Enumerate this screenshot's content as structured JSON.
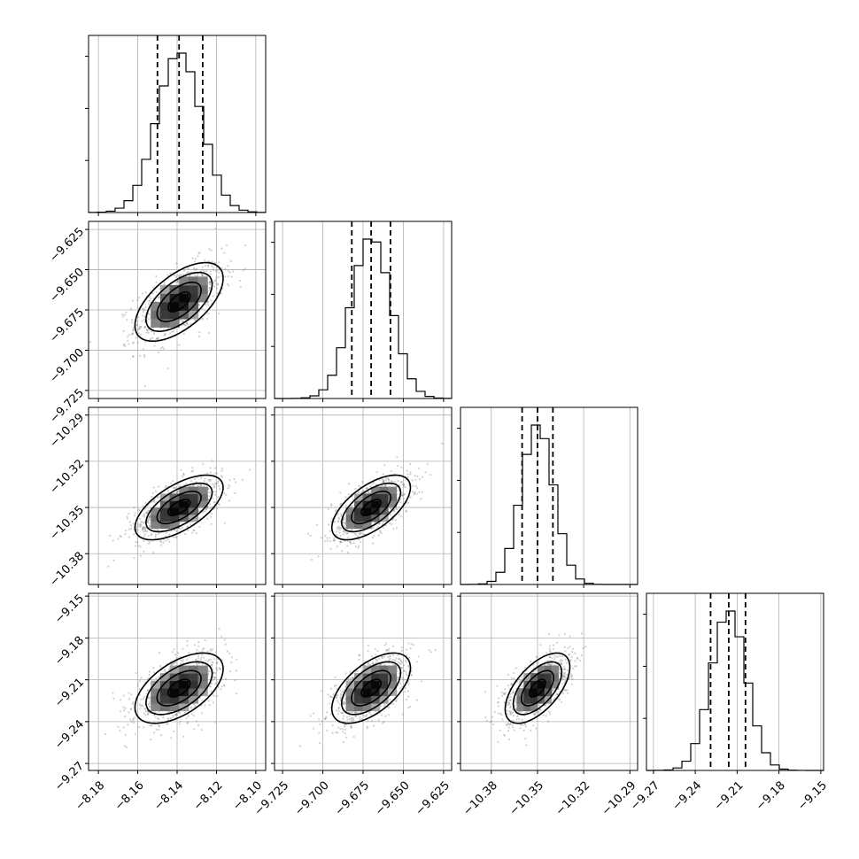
{
  "chart_data": {
    "type": "corner",
    "grid": true,
    "parameters": [
      {
        "index": 0,
        "mean": -8.139,
        "std": 0.0112,
        "range": [
          -8.185,
          -8.095
        ],
        "quantiles": [
          -8.15,
          -8.139,
          -8.127
        ],
        "ticks": [
          -8.18,
          -8.16,
          -8.14,
          -8.12,
          -8.1
        ],
        "tick_labels": [
          "−8.18",
          "−8.16",
          "−8.14",
          "−8.12",
          "−8.10"
        ]
      },
      {
        "index": 1,
        "mean": -9.67,
        "std": 0.0122,
        "range": [
          -9.73,
          -9.62
        ],
        "quantiles": [
          -9.682,
          -9.67,
          -9.658
        ],
        "ticks": [
          -9.725,
          -9.7,
          -9.675,
          -9.65,
          -9.625
        ],
        "tick_labels": [
          "−9.725",
          "−9.700",
          "−9.675",
          "−9.650",
          "−9.625"
        ]
      },
      {
        "index": 2,
        "mean": -10.35,
        "std": 0.0105,
        "range": [
          -10.4,
          -10.285
        ],
        "quantiles": [
          -10.36,
          -10.35,
          -10.34
        ],
        "ticks": [
          -10.38,
          -10.35,
          -10.32,
          -10.29
        ],
        "tick_labels": [
          "−10.38",
          "−10.35",
          "−10.32",
          "−10.29"
        ]
      },
      {
        "index": 3,
        "mean": -9.216,
        "std": 0.0126,
        "range": [
          -9.275,
          -9.148
        ],
        "quantiles": [
          -9.229,
          -9.216,
          -9.204
        ],
        "ticks": [
          -9.27,
          -9.24,
          -9.21,
          -9.18,
          -9.15
        ],
        "tick_labels": [
          "−9.27",
          "−9.24",
          "−9.21",
          "−9.18",
          "−9.15"
        ]
      }
    ],
    "correlations": [
      {
        "x": 0,
        "y": 1,
        "rho": 0.6
      },
      {
        "x": 0,
        "y": 2,
        "rho": 0.62
      },
      {
        "x": 1,
        "y": 2,
        "rho": 0.62
      },
      {
        "x": 0,
        "y": 3,
        "rho": 0.55
      },
      {
        "x": 1,
        "y": 3,
        "rho": 0.58
      },
      {
        "x": 2,
        "y": 3,
        "rho": 0.6
      }
    ],
    "contour_levels_sigma": [
      0.5,
      1.0,
      1.5,
      2.0
    ]
  }
}
